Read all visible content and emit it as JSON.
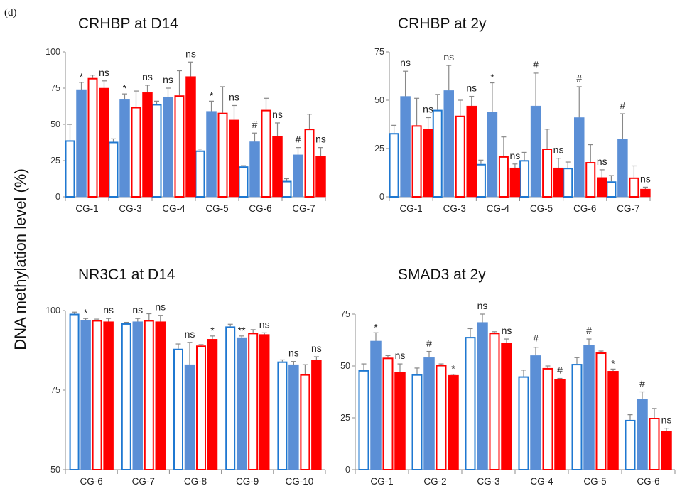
{
  "panel_label": "(d)",
  "shared_ylabel": "DNA methylation level  (%)",
  "colors": {
    "group1": "#1f78d1",
    "group2": "#5b8fd6",
    "group3": "#ff0000",
    "group4": "#ff0000",
    "error_bar": "#888888"
  },
  "bar_styles": [
    "hollow-blue",
    "filled-blue",
    "hollow-red",
    "filled-red"
  ],
  "chart_data": [
    {
      "type": "bar",
      "title": "CRHBP at D14",
      "categories": [
        "CG-1",
        "CG-3",
        "CG-4",
        "CG-5",
        "CG-6",
        "CG-7"
      ],
      "ylim": [
        0,
        100
      ],
      "yticks": [
        0,
        25,
        50,
        75,
        100
      ],
      "series": [
        {
          "values": [
            39,
            38,
            64,
            32,
            21,
            11
          ],
          "errors": [
            11,
            2,
            2,
            1,
            0.5,
            1.5
          ]
        },
        {
          "values": [
            74,
            67,
            69,
            59,
            38,
            29
          ],
          "errors": [
            5,
            4,
            6,
            7,
            6,
            5
          ]
        },
        {
          "values": [
            82,
            62,
            70,
            58,
            60,
            47
          ],
          "errors": [
            2,
            11,
            17,
            18,
            8,
            10
          ]
        },
        {
          "values": [
            75,
            72,
            83,
            53,
            42,
            28
          ],
          "errors": [
            5,
            5,
            10,
            10,
            9,
            6
          ]
        }
      ],
      "annotations": [
        {
          "category": "CG-1",
          "series": 1,
          "text": "*"
        },
        {
          "category": "CG-1",
          "series": 3,
          "text": "ns"
        },
        {
          "category": "CG-3",
          "series": 1,
          "text": "*"
        },
        {
          "category": "CG-3",
          "series": 3,
          "text": "ns"
        },
        {
          "category": "CG-4",
          "series": 1,
          "text": "ns"
        },
        {
          "category": "CG-4",
          "series": 3,
          "text": "ns"
        },
        {
          "category": "CG-5",
          "series": 1,
          "text": "*"
        },
        {
          "category": "CG-5",
          "series": 3,
          "text": "ns"
        },
        {
          "category": "CG-6",
          "series": 1,
          "text": "#"
        },
        {
          "category": "CG-6",
          "series": 3,
          "text": "ns"
        },
        {
          "category": "CG-7",
          "series": 1,
          "text": "#"
        },
        {
          "category": "CG-7",
          "series": 3,
          "text": "ns"
        }
      ]
    },
    {
      "type": "bar",
      "title": "CRHBP at 2y",
      "categories": [
        "CG-1",
        "CG-3",
        "CG-4",
        "CG-5",
        "CG-6",
        "CG-7"
      ],
      "ylim": [
        0,
        75
      ],
      "yticks": [
        0,
        25,
        50,
        75
      ],
      "series": [
        {
          "values": [
            33,
            45,
            17,
            19,
            15,
            8
          ],
          "errors": [
            4,
            8,
            2,
            4,
            3,
            3
          ]
        },
        {
          "values": [
            52,
            55,
            44,
            47,
            41,
            30
          ],
          "errors": [
            13,
            13,
            15,
            17,
            16,
            13
          ]
        },
        {
          "values": [
            37,
            42,
            21,
            25,
            18,
            10
          ],
          "errors": [
            14,
            8,
            10,
            10,
            9,
            6
          ]
        },
        {
          "values": [
            35,
            47,
            15,
            15,
            10,
            4
          ],
          "errors": [
            6,
            5,
            2,
            5,
            4,
            1
          ]
        }
      ],
      "annotations": [
        {
          "category": "CG-1",
          "series": 1,
          "text": "ns"
        },
        {
          "category": "CG-1",
          "series": 3,
          "text": "ns"
        },
        {
          "category": "CG-3",
          "series": 1,
          "text": "ns"
        },
        {
          "category": "CG-3",
          "series": 3,
          "text": "ns"
        },
        {
          "category": "CG-4",
          "series": 1,
          "text": "*"
        },
        {
          "category": "CG-4",
          "series": 3,
          "text": "ns"
        },
        {
          "category": "CG-5",
          "series": 1,
          "text": "#"
        },
        {
          "category": "CG-5",
          "series": 3,
          "text": "ns"
        },
        {
          "category": "CG-6",
          "series": 1,
          "text": "#"
        },
        {
          "category": "CG-6",
          "series": 3,
          "text": "ns"
        },
        {
          "category": "CG-7",
          "series": 1,
          "text": "#"
        },
        {
          "category": "CG-7",
          "series": 3,
          "text": "ns"
        }
      ]
    },
    {
      "type": "bar",
      "title": "NR3C1 at D14",
      "categories": [
        "CG-6",
        "CG-7",
        "CG-8",
        "CG-9",
        "CG-10"
      ],
      "ylim": [
        50,
        100
      ],
      "yticks": [
        50,
        75,
        100
      ],
      "series": [
        {
          "values": [
            99,
            96,
            88,
            95,
            84
          ],
          "errors": [
            0.5,
            0.3,
            1.5,
            0.7,
            0.5
          ]
        },
        {
          "values": [
            97,
            96.5,
            83,
            91.5,
            83
          ],
          "errors": [
            0.5,
            1,
            7,
            0.5,
            1
          ]
        },
        {
          "values": [
            97,
            97,
            89,
            93,
            80
          ],
          "errors": [
            0.3,
            2,
            0.3,
            1,
            3
          ]
        },
        {
          "values": [
            96.5,
            96.5,
            91,
            92.5,
            84.5
          ],
          "errors": [
            1,
            2,
            1,
            0.5,
            1
          ]
        }
      ],
      "annotations": [
        {
          "category": "CG-6",
          "series": 1,
          "text": "*"
        },
        {
          "category": "CG-6",
          "series": 3,
          "text": "ns"
        },
        {
          "category": "CG-7",
          "series": 1,
          "text": "ns"
        },
        {
          "category": "CG-7",
          "series": 3,
          "text": "ns"
        },
        {
          "category": "CG-8",
          "series": 1,
          "text": "ns"
        },
        {
          "category": "CG-8",
          "series": 3,
          "text": "*"
        },
        {
          "category": "CG-9",
          "series": 1,
          "text": "**"
        },
        {
          "category": "CG-9",
          "series": 3,
          "text": "ns"
        },
        {
          "category": "CG-10",
          "series": 1,
          "text": "ns"
        },
        {
          "category": "CG-10",
          "series": 3,
          "text": "ns"
        }
      ]
    },
    {
      "type": "bar",
      "title": "SMAD3 at 2y",
      "categories": [
        "CG-1",
        "CG-2",
        "CG-3",
        "CG-4",
        "CG-5",
        "CG-6"
      ],
      "ylim": [
        0,
        75
      ],
      "yticks": [
        0,
        25,
        50,
        75
      ],
      "series": [
        {
          "values": [
            48,
            46,
            64,
            45,
            51,
            24
          ],
          "errors": [
            3,
            3,
            4,
            3,
            3,
            2.5
          ]
        },
        {
          "values": [
            62,
            54,
            71,
            55,
            60,
            34
          ],
          "errors": [
            4,
            3,
            4,
            4,
            3,
            3.5
          ]
        },
        {
          "values": [
            54,
            50.5,
            66,
            49,
            56.5,
            25
          ],
          "errors": [
            1,
            0.5,
            0.5,
            1,
            0.7,
            4.5
          ]
        },
        {
          "values": [
            47,
            45.5,
            61,
            43.5,
            47.5,
            18.5
          ],
          "errors": [
            4,
            0.5,
            2,
            0.5,
            1,
            1.5
          ]
        }
      ],
      "annotations": [
        {
          "category": "CG-1",
          "series": 1,
          "text": "*"
        },
        {
          "category": "CG-1",
          "series": 3,
          "text": "ns"
        },
        {
          "category": "CG-2",
          "series": 1,
          "text": "#"
        },
        {
          "category": "CG-2",
          "series": 3,
          "text": "*"
        },
        {
          "category": "CG-3",
          "series": 1,
          "text": "ns"
        },
        {
          "category": "CG-3",
          "series": 3,
          "text": "ns"
        },
        {
          "category": "CG-4",
          "series": 1,
          "text": "#"
        },
        {
          "category": "CG-4",
          "series": 3,
          "text": "#"
        },
        {
          "category": "CG-5",
          "series": 1,
          "text": "#"
        },
        {
          "category": "CG-5",
          "series": 3,
          "text": "*"
        },
        {
          "category": "CG-6",
          "series": 1,
          "text": "#"
        },
        {
          "category": "CG-6",
          "series": 3,
          "text": "ns"
        }
      ]
    }
  ]
}
